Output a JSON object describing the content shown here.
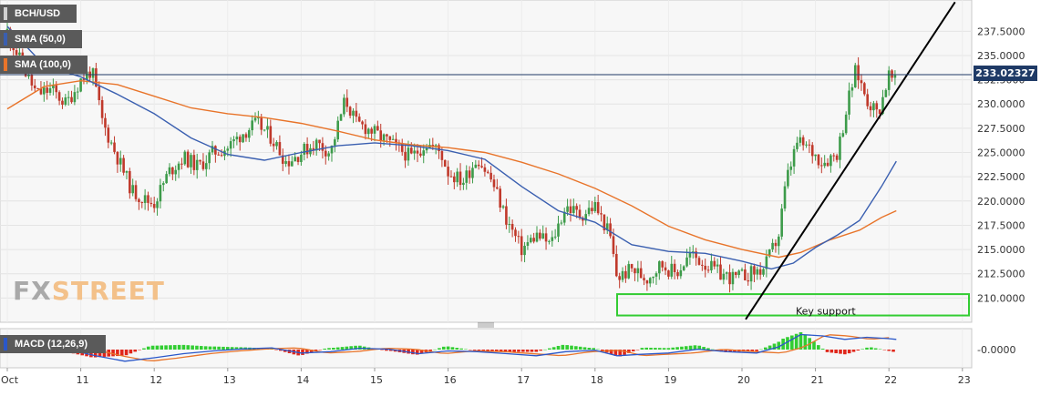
{
  "instrument": "BCH/USD",
  "indicators": {
    "sma50": {
      "label": "SMA (50,0)",
      "color": "#3a5fb0"
    },
    "sma100": {
      "label": "SMA (100,0)",
      "color": "#e8742a"
    },
    "macd": {
      "label": "MACD (12,26,9)",
      "macd_color": "#2a57c9",
      "signal_color": "#e8742a",
      "hist_pos": "#32cd32",
      "hist_neg": "#e0261a"
    }
  },
  "current_price": {
    "value": 233.02327,
    "label": "233.02327"
  },
  "annotation": {
    "label": "Key support",
    "range": [
      208.2,
      210.4
    ],
    "color": "#33cc33"
  },
  "logo": {
    "part1": "FX",
    "part2": "STREET"
  },
  "colors": {
    "up": "#3d9b4a",
    "down": "#c0392b",
    "trendline": "#000000"
  },
  "chart_data": {
    "type": "candlestick",
    "xlabel": "",
    "ylabel": "",
    "ylim": [
      207.5,
      239.5
    ],
    "y_ticks": [
      "237.5000",
      "235.0000",
      "232.5000",
      "230.0000",
      "227.5000",
      "225.0000",
      "222.5000",
      "220.0000",
      "217.5000",
      "215.0000",
      "212.5000",
      "210.0000"
    ],
    "y_tick_values": [
      237.5,
      235,
      232.5,
      230,
      227.5,
      225,
      222.5,
      220,
      217.5,
      215,
      212.5,
      210
    ],
    "x_ticks": [
      "Oct",
      "11",
      "12",
      "13",
      "14",
      "15",
      "16",
      "17",
      "18",
      "19",
      "20",
      "21",
      "22",
      "23"
    ],
    "x_tick_days": [
      10,
      11,
      12,
      13,
      14,
      15,
      16,
      17,
      18,
      19,
      20,
      21,
      22,
      23
    ],
    "close_path_days": [
      10.0,
      10.2,
      10.4,
      10.6,
      10.8,
      11.0,
      11.15,
      11.3,
      11.5,
      11.7,
      11.9,
      12.0,
      12.2,
      12.4,
      12.6,
      12.8,
      13.0,
      13.2,
      13.4,
      13.6,
      13.8,
      14.0,
      14.2,
      14.4,
      14.6,
      14.75,
      14.9,
      15.1,
      15.3,
      15.5,
      15.7,
      15.9,
      16.0,
      16.2,
      16.4,
      16.6,
      16.8,
      17.0,
      17.2,
      17.4,
      17.6,
      17.8,
      18.0,
      18.2,
      18.3,
      18.5,
      18.7,
      18.9,
      19.1,
      19.3,
      19.5,
      19.7,
      19.9,
      20.1,
      20.3,
      20.5,
      20.6,
      20.75,
      20.9,
      21.1,
      21.3,
      21.45,
      21.55,
      21.7,
      21.85,
      22.0,
      22.1
    ],
    "close_path_values": [
      237.5,
      234.0,
      231.0,
      231.5,
      230.0,
      232.5,
      233.5,
      228.0,
      224.5,
      221.0,
      220.0,
      219.8,
      223.0,
      224.5,
      223.5,
      225.0,
      225.5,
      227.0,
      228.0,
      226.5,
      224.0,
      225.0,
      226.0,
      225.0,
      230.5,
      228.0,
      227.5,
      226.5,
      225.5,
      224.5,
      226.0,
      225.0,
      223.0,
      222.0,
      224.5,
      222.0,
      218.0,
      215.0,
      216.5,
      215.5,
      219.5,
      218.5,
      219.5,
      216.5,
      212.0,
      213.0,
      212.0,
      213.5,
      212.5,
      214.5,
      213.5,
      212.5,
      212.0,
      212.5,
      213.0,
      216.5,
      222.0,
      226.0,
      225.5,
      224.0,
      225.0,
      230.5,
      233.5,
      230.5,
      229.0,
      233.0,
      232.0
    ],
    "series": [
      {
        "name": "SMA (50,0)",
        "x": [
          10.0,
          10.5,
          11.0,
          11.5,
          12.0,
          12.5,
          13.0,
          13.5,
          14.0,
          14.5,
          15.0,
          15.5,
          16.0,
          16.5,
          17.0,
          17.5,
          18.0,
          18.5,
          19.0,
          19.5,
          20.0,
          20.4,
          20.7,
          21.0,
          21.3,
          21.6,
          21.9,
          22.1
        ],
        "values": [
          238.0,
          234.0,
          232.8,
          231.0,
          229.0,
          226.5,
          224.8,
          224.2,
          225.0,
          225.7,
          226.0,
          225.7,
          225.2,
          224.3,
          221.5,
          219.0,
          217.8,
          215.5,
          214.8,
          214.6,
          213.8,
          213.0,
          213.6,
          215.2,
          216.5,
          218.0,
          221.5,
          224.1
        ]
      },
      {
        "name": "SMA (100,0)",
        "x": [
          10.0,
          10.5,
          11.0,
          11.5,
          12.0,
          12.5,
          13.0,
          13.5,
          14.0,
          14.5,
          15.0,
          15.5,
          16.0,
          16.5,
          17.0,
          17.5,
          18.0,
          18.5,
          19.0,
          19.5,
          20.0,
          20.5,
          20.8,
          21.2,
          21.6,
          21.9,
          22.1
        ],
        "values": [
          229.5,
          231.8,
          232.4,
          232.0,
          230.8,
          229.6,
          229.0,
          228.6,
          228.0,
          227.2,
          226.3,
          225.8,
          225.5,
          225.0,
          224.0,
          222.8,
          221.3,
          219.5,
          217.4,
          216.0,
          215.0,
          214.2,
          214.7,
          216.0,
          217.0,
          218.3,
          219.0
        ]
      },
      {
        "name": "MACD (12,26,9)",
        "x": [
          10.0,
          10.4,
          10.8,
          11.2,
          11.6,
          12.0,
          12.4,
          12.8,
          13.2,
          13.6,
          14.0,
          14.4,
          14.8,
          15.2,
          15.6,
          16.0,
          16.4,
          16.8,
          17.2,
          17.6,
          18.0,
          18.3,
          18.6,
          19.0,
          19.4,
          19.8,
          20.2,
          20.5,
          20.8,
          21.1,
          21.4,
          21.7,
          22.0,
          22.1
        ],
        "values": [
          0.6,
          0.4,
          0.1,
          -0.9,
          -1.7,
          -1.2,
          -0.6,
          -0.2,
          0.1,
          0.25,
          -0.5,
          -0.3,
          0.2,
          0.05,
          -0.6,
          -0.2,
          -0.3,
          -0.6,
          -0.9,
          -0.3,
          -0.1,
          -0.9,
          -0.7,
          -0.5,
          0.05,
          -0.3,
          -0.5,
          0.4,
          2.2,
          2.0,
          1.5,
          1.8,
          1.6,
          1.5
        ]
      }
    ]
  }
}
